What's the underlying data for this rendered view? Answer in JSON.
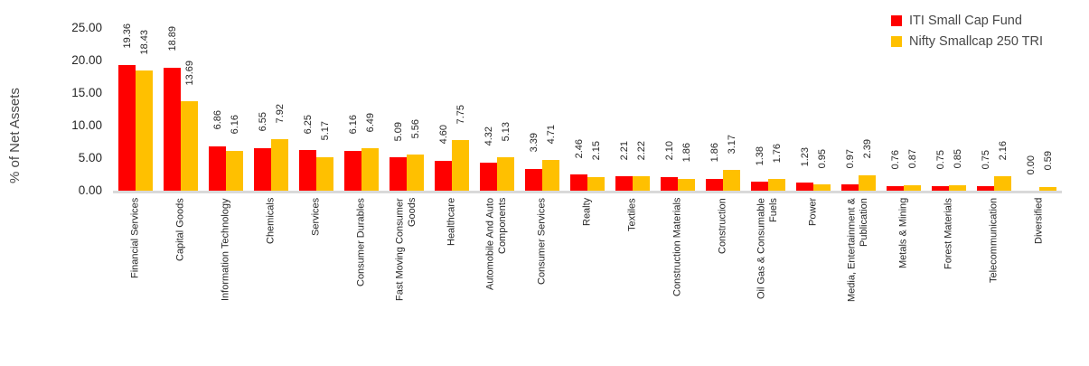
{
  "chart_data": {
    "type": "bar",
    "title": "",
    "xlabel": "",
    "ylabel": "% of Net Assets",
    "ylim": [
      0,
      25
    ],
    "y_ticks": [
      "25.00",
      "20.00",
      "15.00",
      "10.00",
      "5.00",
      "0.00"
    ],
    "grid": false,
    "legend_position": "top-right",
    "categories": [
      "Financial Services",
      "Capital Goods",
      "Information Technology",
      "Chemicals",
      "Services",
      "Consumer Durables",
      "Fast Moving Consumer\nGoods",
      "Healthcare",
      "Automobile And Auto\nComponents",
      "Consumer Services",
      "Realty",
      "Textiles",
      "Construction Materials",
      "Construction",
      "Oil Gas & Consumable\nFuels",
      "Power",
      "Media, Entertainment &\nPublication",
      "Metals & Mining",
      "Forest Materials",
      "Telecommunication",
      "Diversified"
    ],
    "series": [
      {
        "name": "ITI Small Cap Fund",
        "color": "#ff0000",
        "values": [
          19.36,
          18.89,
          6.86,
          6.55,
          6.25,
          6.16,
          5.09,
          4.6,
          4.32,
          3.39,
          2.46,
          2.21,
          2.1,
          1.86,
          1.38,
          1.23,
          0.97,
          0.76,
          0.75,
          0.75,
          0.0
        ]
      },
      {
        "name": "Nifty Smallcap 250 TRI",
        "color": "#ffc000",
        "values": [
          18.43,
          13.69,
          6.16,
          7.92,
          5.17,
          6.49,
          5.56,
          7.75,
          5.13,
          4.71,
          2.15,
          2.22,
          1.86,
          3.17,
          1.76,
          0.95,
          2.39,
          0.87,
          0.85,
          2.16,
          0.59
        ]
      }
    ],
    "value_label_format": "0.00",
    "colors": {
      "axis_line": "#d9d9d9",
      "label_text": "#262626",
      "axis_title_text": "#474747"
    }
  }
}
